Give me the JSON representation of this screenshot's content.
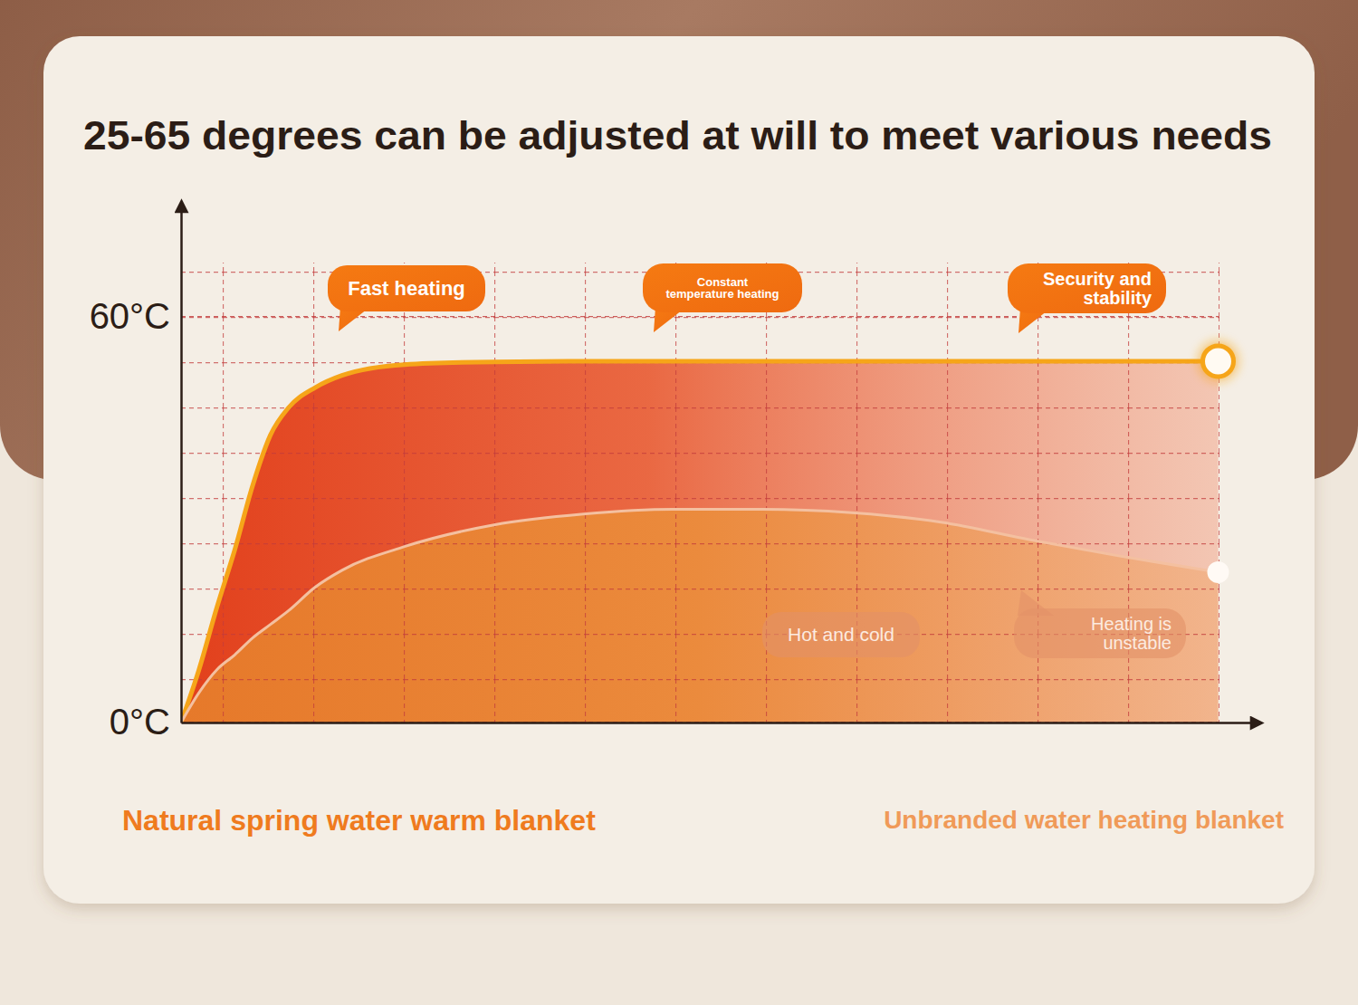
{
  "chart_data": {
    "type": "area",
    "title": "25-65 degrees can be adjusted at will to meet various needs",
    "x": [
      0,
      0.2,
      0.4,
      0.6,
      0.8,
      1.0,
      1.2,
      1.5,
      1.8,
      2.5,
      3.5,
      4.5,
      5.5,
      6.5,
      7.5,
      8.5,
      9.5,
      10.5,
      11.6
    ],
    "xlim": [
      0,
      12
    ],
    "ylim": [
      0,
      76
    ],
    "yticks": [
      {
        "value": 0,
        "label": "0°C"
      },
      {
        "value": 60,
        "label": "60°C"
      }
    ],
    "grid": true,
    "tick_labels": "y",
    "series": [
      {
        "name": "Natural spring water warm blanket",
        "color": "#f6a519",
        "values": [
          0,
          7.8,
          17,
          25.5,
          35,
          42.5,
          46.5,
          49.5,
          51.3,
          52.9,
          53.3,
          53.4,
          53.4,
          53.4,
          53.4,
          53.4,
          53.4,
          53.4,
          53.4
        ]
      },
      {
        "name": "Unbranded water heating blanket",
        "color": "#f4c0a0",
        "values": [
          0,
          4.4,
          7.8,
          10,
          12.5,
          14.5,
          16.5,
          20,
          22.5,
          26,
          29.2,
          30.8,
          31.5,
          31.5,
          31,
          29.6,
          27,
          24.6,
          22.2
        ]
      }
    ],
    "annotations": [
      {
        "lines": [
          "Fast heating"
        ]
      },
      {
        "lines": [
          "Constant",
          "temperature heating"
        ]
      },
      {
        "lines": [
          "Security and",
          "stability"
        ]
      },
      {
        "lines": [
          "Hot and cold"
        ]
      },
      {
        "lines": [
          "Heating is",
          "unstable"
        ]
      }
    ]
  }
}
